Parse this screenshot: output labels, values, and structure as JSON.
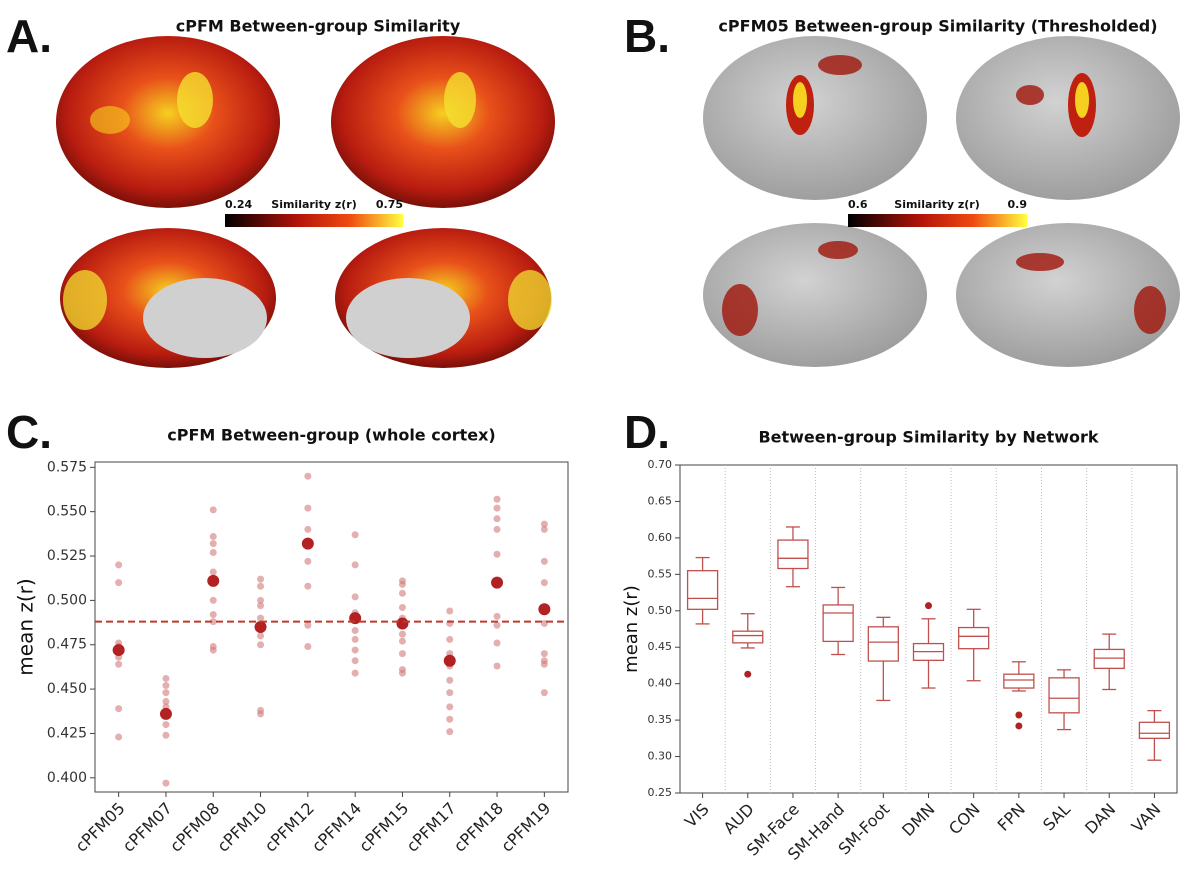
{
  "panel_labels": [
    "A.",
    "B.",
    "C.",
    "D."
  ],
  "brain_panels": [
    {
      "title": "cPFM Between-group Similarity",
      "colorbar": {
        "label": "Similarity z(r)",
        "min": 0.24,
        "max": 0.75
      }
    },
    {
      "title": "cPFM05 Between-group Similarity (Thresholded)",
      "colorbar": {
        "label": "Similarity z(r)",
        "min": 0.6,
        "max": 0.9
      }
    }
  ],
  "chart_data": [
    {
      "type": "strip",
      "title": "cPFM Between-group (whole cortex)",
      "ylabel": "mean z(r)",
      "categories": [
        "cPFM05",
        "cPFM07",
        "cPFM08",
        "cPFM10",
        "cPFM12",
        "cPFM14",
        "cPFM15",
        "cPFM17",
        "cPFM18",
        "cPFM19"
      ],
      "points": [
        [
          0.52,
          0.51,
          0.476,
          0.474,
          0.468,
          0.464,
          0.439,
          0.423
        ],
        [
          0.456,
          0.452,
          0.448,
          0.443,
          0.44,
          0.436,
          0.43,
          0.424,
          0.397
        ],
        [
          0.551,
          0.536,
          0.532,
          0.527,
          0.516,
          0.5,
          0.492,
          0.488,
          0.474,
          0.472
        ],
        [
          0.512,
          0.508,
          0.5,
          0.497,
          0.49,
          0.48,
          0.475,
          0.438,
          0.436
        ],
        [
          0.57,
          0.552,
          0.54,
          0.522,
          0.508,
          0.486,
          0.474
        ],
        [
          0.537,
          0.52,
          0.502,
          0.493,
          0.49,
          0.483,
          0.478,
          0.472,
          0.466,
          0.459
        ],
        [
          0.511,
          0.509,
          0.504,
          0.496,
          0.49,
          0.481,
          0.477,
          0.47,
          0.461,
          0.459
        ],
        [
          0.494,
          0.487,
          0.478,
          0.47,
          0.463,
          0.455,
          0.448,
          0.44,
          0.433,
          0.426
        ],
        [
          0.557,
          0.552,
          0.546,
          0.54,
          0.526,
          0.51,
          0.491,
          0.486,
          0.476,
          0.463
        ],
        [
          0.543,
          0.54,
          0.522,
          0.51,
          0.496,
          0.487,
          0.47,
          0.466,
          0.464,
          0.448
        ]
      ],
      "means": [
        0.472,
        0.436,
        0.511,
        0.485,
        0.532,
        0.49,
        0.487,
        0.466,
        0.51,
        0.495
      ],
      "hline": 0.488,
      "point_color": "#d07a7a",
      "mean_color": "#b22222",
      "line_color": "#c0392b",
      "ylim": [
        0.392,
        0.578
      ],
      "yticks": [
        {
          "value": 0.4,
          "label": "0.400"
        },
        0.425,
        {
          "value": 0.45,
          "label": "0.450"
        },
        0.475,
        {
          "value": 0.5,
          "label": "0.500"
        },
        0.525,
        {
          "value": 0.55,
          "label": "0.550"
        },
        0.575
      ]
    },
    {
      "type": "box",
      "title": "Between-group Similarity by Network",
      "ylabel": "mean z(r)",
      "categories": [
        "VIS",
        "AUD",
        "SM-Face",
        "SM-Hand",
        "SM-Foot",
        "DMN",
        "CON",
        "FPN",
        "SAL",
        "DAN",
        "VAN"
      ],
      "boxes": [
        {
          "whislo": 0.482,
          "q1": 0.502,
          "med": 0.517,
          "q3": 0.555,
          "whishi": 0.573,
          "fliers": []
        },
        {
          "whislo": 0.449,
          "q1": 0.456,
          "med": 0.466,
          "q3": 0.472,
          "whishi": 0.496,
          "fliers": [
            0.413
          ]
        },
        {
          "whislo": 0.533,
          "q1": 0.558,
          "med": 0.572,
          "q3": 0.597,
          "whishi": 0.615,
          "fliers": []
        },
        {
          "whislo": 0.44,
          "q1": 0.458,
          "med": 0.497,
          "q3": 0.508,
          "whishi": 0.532,
          "fliers": []
        },
        {
          "whislo": 0.377,
          "q1": 0.431,
          "med": 0.457,
          "q3": 0.478,
          "whishi": 0.491,
          "fliers": []
        },
        {
          "whislo": 0.394,
          "q1": 0.432,
          "med": 0.444,
          "q3": 0.455,
          "whishi": 0.489,
          "fliers": [
            0.507
          ]
        },
        {
          "whislo": 0.404,
          "q1": 0.448,
          "med": 0.465,
          "q3": 0.477,
          "whishi": 0.502,
          "fliers": []
        },
        {
          "whislo": 0.39,
          "q1": 0.394,
          "med": 0.405,
          "q3": 0.413,
          "whishi": 0.43,
          "fliers": [
            0.357,
            0.342
          ]
        },
        {
          "whislo": 0.337,
          "q1": 0.36,
          "med": 0.38,
          "q3": 0.408,
          "whishi": 0.419,
          "fliers": []
        },
        {
          "whislo": 0.392,
          "q1": 0.421,
          "med": 0.435,
          "q3": 0.447,
          "whishi": 0.468,
          "fliers": []
        },
        {
          "whislo": 0.295,
          "q1": 0.325,
          "med": 0.332,
          "q3": 0.347,
          "whishi": 0.363,
          "fliers": []
        }
      ],
      "color": "#c0504d",
      "separators": true,
      "ylim": [
        0.25,
        0.7
      ],
      "yticks": [
        0.25,
        {
          "value": 0.3,
          "label": "0.30"
        },
        0.35,
        {
          "value": 0.4,
          "label": "0.40"
        },
        0.45,
        {
          "value": 0.5,
          "label": "0.50"
        },
        0.55,
        {
          "value": 0.6,
          "label": "0.60"
        },
        0.65,
        {
          "value": 0.7,
          "label": "0.70"
        }
      ]
    }
  ]
}
